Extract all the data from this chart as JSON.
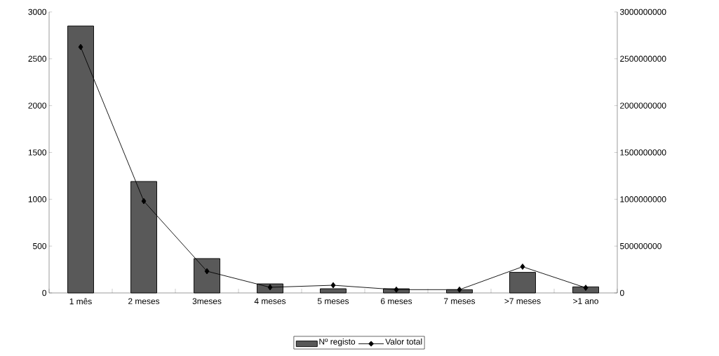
{
  "chart_data": {
    "type": "bar",
    "categories": [
      "1 mês",
      "2 meses",
      "3meses",
      "4 meses",
      "5 meses",
      "6 meses",
      "7 meses",
      ">7 meses",
      ">1 ano"
    ],
    "series": [
      {
        "name": "Nº registo",
        "color": "#595959",
        "values": [
          2850,
          1190,
          367,
          97,
          45,
          45,
          35,
          220,
          65
        ]
      },
      {
        "name": "Valor total",
        "type": "line",
        "axis": "y2",
        "color": "#000000",
        "marker": "diamond",
        "values": [
          2625000000,
          980000000,
          232000000,
          60000000,
          82000000,
          35000000,
          35000000,
          280000000,
          55000000
        ]
      }
    ],
    "ylim": [
      0,
      3000
    ],
    "yticks": [
      0,
      500,
      1000,
      1500,
      2000,
      2500,
      3000
    ],
    "y2lim": [
      0,
      3000000000
    ],
    "y2ticks": [
      0,
      500000000,
      1000000000,
      1500000000,
      2000000000,
      2500000000,
      3000000000
    ],
    "legend": "bottom",
    "grid": false
  }
}
